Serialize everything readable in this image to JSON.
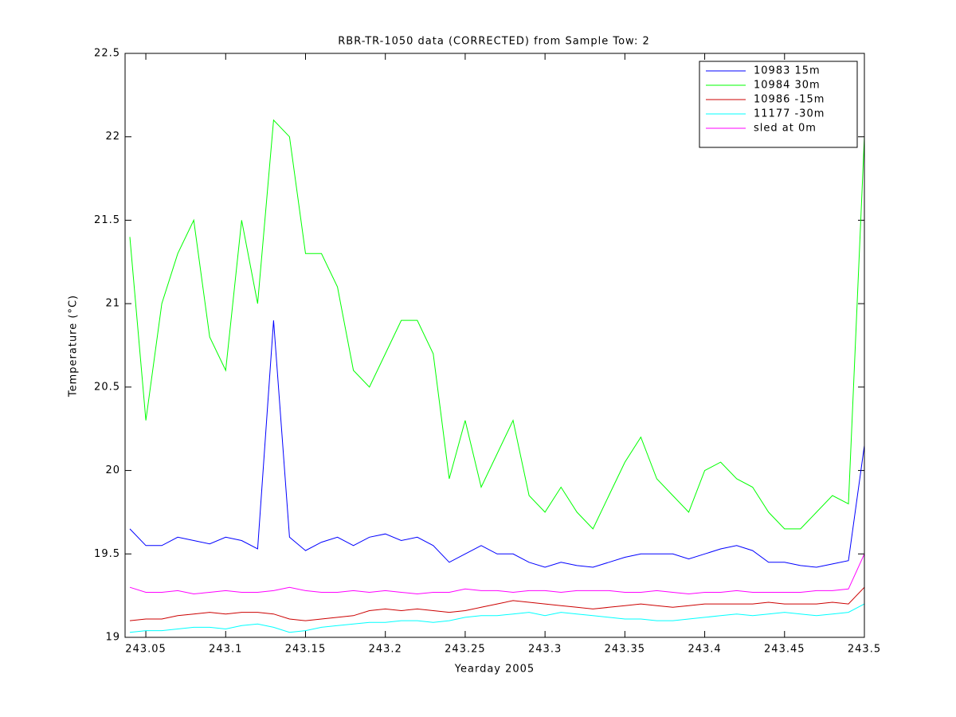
{
  "chart_data": {
    "type": "line",
    "title": "RBR-TR-1050 data (CORRECTED) from Sample Tow: 2",
    "x_label": "Yearday 2005",
    "y_label": "Temperature (°C)",
    "x": [
      243.04,
      243.05,
      243.06,
      243.07,
      243.08,
      243.09,
      243.1,
      243.11,
      243.12,
      243.13,
      243.14,
      243.15,
      243.16,
      243.17,
      243.18,
      243.19,
      243.2,
      243.21,
      243.22,
      243.23,
      243.24,
      243.25,
      243.26,
      243.27,
      243.28,
      243.29,
      243.3,
      243.31,
      243.32,
      243.33,
      243.34,
      243.35,
      243.36,
      243.37,
      243.38,
      243.39,
      243.4,
      243.41,
      243.42,
      243.43,
      243.44,
      243.45,
      243.46,
      243.47,
      243.48,
      243.49,
      243.5
    ],
    "series": [
      {
        "name": "10983 15m",
        "color": "#0000ff",
        "values": [
          19.65,
          19.55,
          19.55,
          19.6,
          19.58,
          19.56,
          19.6,
          19.58,
          19.53,
          20.9,
          19.6,
          19.52,
          19.57,
          19.6,
          19.55,
          19.6,
          19.62,
          19.58,
          19.6,
          19.55,
          19.45,
          19.5,
          19.55,
          19.5,
          19.5,
          19.45,
          19.42,
          19.45,
          19.43,
          19.42,
          19.45,
          19.48,
          19.5,
          19.5,
          19.5,
          19.47,
          19.5,
          19.53,
          19.55,
          19.52,
          19.45,
          19.45,
          19.43,
          19.42,
          19.44,
          19.46,
          20.15
        ]
      },
      {
        "name": "10984 30m",
        "color": "#00ff00",
        "values": [
          21.4,
          20.3,
          21.0,
          21.3,
          21.5,
          20.8,
          20.6,
          21.5,
          21.0,
          22.1,
          22.0,
          21.3,
          21.3,
          21.1,
          20.6,
          20.5,
          20.7,
          20.9,
          20.9,
          20.7,
          19.95,
          20.3,
          19.9,
          20.1,
          20.3,
          19.85,
          19.75,
          19.9,
          19.75,
          19.65,
          19.85,
          20.05,
          20.2,
          19.95,
          19.85,
          19.75,
          20.0,
          20.05,
          19.95,
          19.9,
          19.75,
          19.65,
          19.65,
          19.75,
          19.85,
          19.8,
          22.0
        ]
      },
      {
        "name": "10986 -15m",
        "color": "#cc0000",
        "values": [
          19.1,
          19.11,
          19.11,
          19.13,
          19.14,
          19.15,
          19.14,
          19.15,
          19.15,
          19.14,
          19.11,
          19.1,
          19.11,
          19.12,
          19.13,
          19.16,
          19.17,
          19.16,
          19.17,
          19.16,
          19.15,
          19.16,
          19.18,
          19.2,
          19.22,
          19.21,
          19.2,
          19.19,
          19.18,
          19.17,
          19.18,
          19.19,
          19.2,
          19.19,
          19.18,
          19.19,
          19.2,
          19.2,
          19.2,
          19.2,
          19.21,
          19.2,
          19.2,
          19.2,
          19.21,
          19.2,
          19.3
        ]
      },
      {
        "name": "11177 -30m",
        "color": "#00ffff",
        "values": [
          19.03,
          19.04,
          19.04,
          19.05,
          19.06,
          19.06,
          19.05,
          19.07,
          19.08,
          19.06,
          19.03,
          19.04,
          19.06,
          19.07,
          19.08,
          19.09,
          19.09,
          19.1,
          19.1,
          19.09,
          19.1,
          19.12,
          19.13,
          19.13,
          19.14,
          19.15,
          19.13,
          19.15,
          19.14,
          19.13,
          19.12,
          19.11,
          19.11,
          19.1,
          19.1,
          19.11,
          19.12,
          19.13,
          19.14,
          19.13,
          19.14,
          19.15,
          19.14,
          19.13,
          19.14,
          19.15,
          19.2
        ]
      },
      {
        "name": "sled at 0m",
        "color": "#ff00ff",
        "values": [
          19.3,
          19.27,
          19.27,
          19.28,
          19.26,
          19.27,
          19.28,
          19.27,
          19.27,
          19.28,
          19.3,
          19.28,
          19.27,
          19.27,
          19.28,
          19.27,
          19.28,
          19.27,
          19.26,
          19.27,
          19.27,
          19.29,
          19.28,
          19.28,
          19.27,
          19.28,
          19.28,
          19.27,
          19.28,
          19.28,
          19.28,
          19.27,
          19.27,
          19.28,
          19.27,
          19.26,
          19.27,
          19.27,
          19.28,
          19.27,
          19.27,
          19.27,
          19.27,
          19.28,
          19.28,
          19.29,
          19.5
        ]
      }
    ],
    "xlim": [
      243.037,
      243.5
    ],
    "ylim": [
      19,
      22.5
    ],
    "xticks": [
      243.05,
      243.1,
      243.15,
      243.2,
      243.25,
      243.3,
      243.35,
      243.4,
      243.45,
      243.5
    ],
    "yticks": [
      19,
      19.5,
      20,
      20.5,
      21,
      21.5,
      22,
      22.5
    ],
    "grid": false,
    "legend": "upper right"
  }
}
